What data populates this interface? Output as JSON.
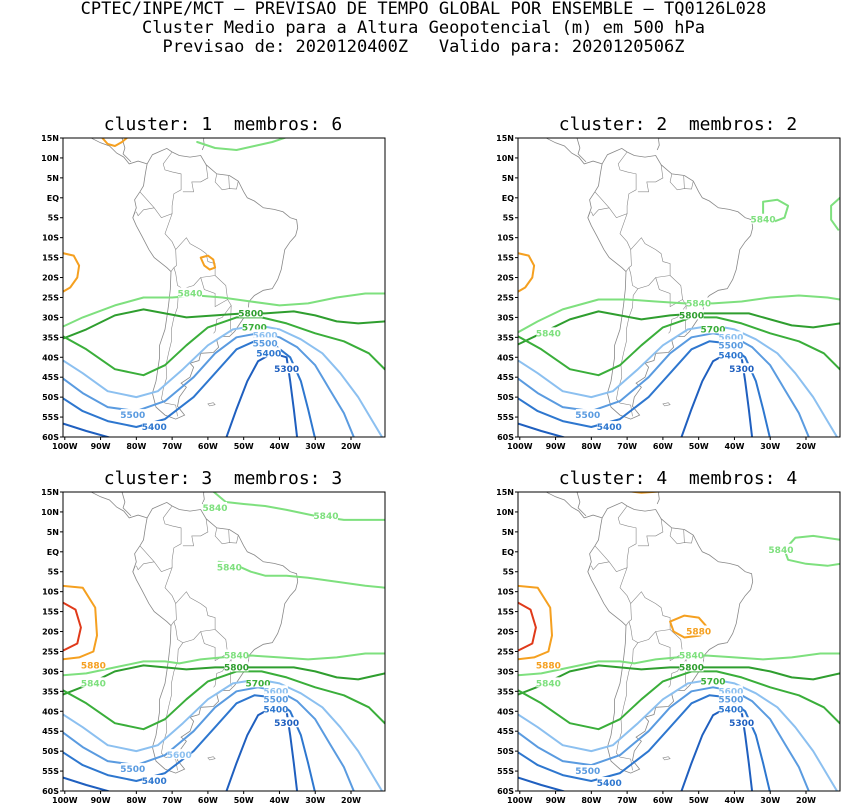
{
  "header": {
    "line1": "CPTEC/INPE/MCT — PREVISAO DE TEMPO GLOBAL POR ENSEMBLE — TQ0126L028",
    "line2": "Cluster Medio para a Altura Geopotencial (m) em 500 hPa",
    "line3": "Previsao de: 2020120400Z   Valido para: 2020120506Z"
  },
  "colors": {
    "5300": "#1f5fbf",
    "5400": "#2e77cf",
    "5500": "#5a9be0",
    "5600": "#8cc0f0",
    "5700": "#3aae3a",
    "5800": "#2f9e2f",
    "5840": "#7ee07e",
    "5880": "#f5a020",
    "5920": "#e03a1a",
    "coast": "#888888"
  },
  "axes": {
    "lat_labels": [
      "15N",
      "10N",
      "5N",
      "EQ",
      "5S",
      "10S",
      "15S",
      "20S",
      "25S",
      "30S",
      "35S",
      "40S",
      "45S",
      "50S",
      "55S",
      "60S"
    ],
    "lon_labels": [
      "100W",
      "90W",
      "80W",
      "70W",
      "60W",
      "50W",
      "40W",
      "30W",
      "20W"
    ]
  },
  "panels": [
    {
      "title": "cluster: 1  membros: 6",
      "labels": [
        {
          "text": "5840",
          "lon": -65,
          "lat": -24,
          "c": "5840"
        },
        {
          "text": "5800",
          "lon": -48,
          "lat": -29,
          "c": "5800"
        },
        {
          "text": "5700",
          "lon": -47,
          "lat": -32.5,
          "c": "5700"
        },
        {
          "text": "5600",
          "lon": -44,
          "lat": -34.5,
          "c": "5600"
        },
        {
          "text": "5500",
          "lon": -44,
          "lat": -36.5,
          "c": "5500"
        },
        {
          "text": "5400",
          "lon": -43,
          "lat": -39,
          "c": "5400"
        },
        {
          "text": "5300",
          "lon": -38,
          "lat": -43,
          "c": "5300"
        },
        {
          "text": "5500",
          "lon": -81,
          "lat": -54.5,
          "c": "5500"
        },
        {
          "text": "5400",
          "lon": -75,
          "lat": -57.5,
          "c": "5400"
        }
      ]
    },
    {
      "title": "cluster: 2  membros: 2",
      "labels": [
        {
          "text": "5840",
          "lon": -32,
          "lat": -5.5,
          "c": "5840"
        },
        {
          "text": "5840",
          "lon": -92,
          "lat": -34,
          "c": "5840"
        },
        {
          "text": "5840",
          "lon": -50,
          "lat": -26.5,
          "c": "5840"
        },
        {
          "text": "5800",
          "lon": -52,
          "lat": -29.5,
          "c": "5800"
        },
        {
          "text": "5700",
          "lon": -46,
          "lat": -33,
          "c": "5700"
        },
        {
          "text": "5600",
          "lon": -41,
          "lat": -35,
          "c": "5600"
        },
        {
          "text": "5500",
          "lon": -41,
          "lat": -37,
          "c": "5500"
        },
        {
          "text": "5400",
          "lon": -41,
          "lat": -39.5,
          "c": "5400"
        },
        {
          "text": "5300",
          "lon": -38,
          "lat": -43,
          "c": "5300"
        },
        {
          "text": "5500",
          "lon": -81,
          "lat": -54.5,
          "c": "5500"
        },
        {
          "text": "5400",
          "lon": -75,
          "lat": -57.5,
          "c": "5400"
        }
      ]
    },
    {
      "title": "cluster: 3  membros: 3",
      "labels": [
        {
          "text": "5840",
          "lon": -58,
          "lat": 11,
          "c": "5840"
        },
        {
          "text": "5840",
          "lon": -27,
          "lat": 9,
          "c": "5840"
        },
        {
          "text": "5840",
          "lon": -54,
          "lat": -4,
          "c": "5840"
        },
        {
          "text": "5880",
          "lon": -92,
          "lat": -28.5,
          "c": "5880"
        },
        {
          "text": "5840",
          "lon": -92,
          "lat": -33,
          "c": "5840"
        },
        {
          "text": "5840",
          "lon": -52,
          "lat": -26,
          "c": "5840"
        },
        {
          "text": "5800",
          "lon": -52,
          "lat": -29,
          "c": "5800"
        },
        {
          "text": "5700",
          "lon": -46,
          "lat": -33,
          "c": "5700"
        },
        {
          "text": "5600",
          "lon": -41,
          "lat": -35,
          "c": "5600"
        },
        {
          "text": "5500",
          "lon": -41,
          "lat": -37,
          "c": "5500"
        },
        {
          "text": "5400",
          "lon": -41,
          "lat": -39.5,
          "c": "5400"
        },
        {
          "text": "5300",
          "lon": -38,
          "lat": -43,
          "c": "5300"
        },
        {
          "text": "5600",
          "lon": -68,
          "lat": -51,
          "c": "5600"
        },
        {
          "text": "5500",
          "lon": -81,
          "lat": -54.5,
          "c": "5500"
        },
        {
          "text": "5400",
          "lon": -75,
          "lat": -57.5,
          "c": "5400"
        }
      ]
    },
    {
      "title": "cluster: 4  membros: 4",
      "labels": [
        {
          "text": "5840",
          "lon": -27,
          "lat": 0.5,
          "c": "5840"
        },
        {
          "text": "5880",
          "lon": -50,
          "lat": -20,
          "c": "5880"
        },
        {
          "text": "5880",
          "lon": -92,
          "lat": -28.5,
          "c": "5880"
        },
        {
          "text": "5840",
          "lon": -92,
          "lat": -33,
          "c": "5840"
        },
        {
          "text": "5840",
          "lon": -52,
          "lat": -26,
          "c": "5840"
        },
        {
          "text": "5800",
          "lon": -52,
          "lat": -29,
          "c": "5800"
        },
        {
          "text": "5700",
          "lon": -46,
          "lat": -32.5,
          "c": "5700"
        },
        {
          "text": "5600",
          "lon": -41,
          "lat": -35,
          "c": "5600"
        },
        {
          "text": "5500",
          "lon": -41,
          "lat": -37,
          "c": "5500"
        },
        {
          "text": "5400",
          "lon": -41,
          "lat": -39.5,
          "c": "5400"
        },
        {
          "text": "5300",
          "lon": -38,
          "lat": -43,
          "c": "5300"
        },
        {
          "text": "5500",
          "lon": -81,
          "lat": -55,
          "c": "5500"
        },
        {
          "text": "5400",
          "lon": -75,
          "lat": -58,
          "c": "5400"
        }
      ]
    }
  ]
}
